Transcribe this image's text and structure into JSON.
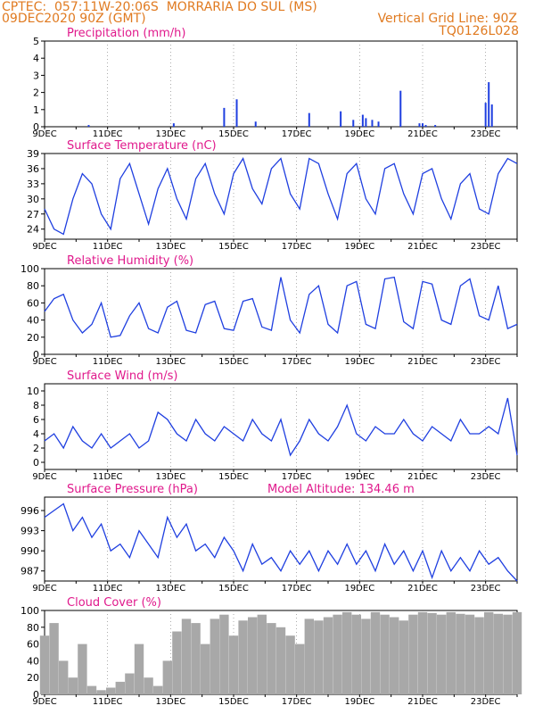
{
  "header": {
    "line1_left": "CPTEC:  057:11W-20:06S  MORRARIA DO SUL (MS)",
    "line2_left": "09DEC2020 90Z (GMT)",
    "line2_right": "Vertical Grid Line: 90Z",
    "line3_right": "TQ0126L028"
  },
  "x_tick_labels": [
    "9DEC",
    "11DEC",
    "13DEC",
    "15DEC",
    "17DEC",
    "19DEC",
    "21DEC",
    "23DEC"
  ],
  "colors": {
    "header": "#e07a20",
    "title": "#e0198c",
    "series": "#1f3fe0",
    "cloud": "#a8a8a8"
  },
  "chart_data": [
    {
      "id": "precip",
      "type": "bar",
      "title": "Precipitation (mm/h)",
      "ylim": [
        0,
        5
      ],
      "yticks": [
        0,
        1,
        2,
        3,
        4,
        5
      ],
      "xlim": [
        0,
        15
      ],
      "x_days": [
        1.4,
        4.1,
        5.7,
        6.1,
        6.7,
        8.4,
        9.4,
        9.8,
        10.1,
        10.2,
        10.4,
        10.6,
        11.3,
        11.9,
        12.0,
        12.1,
        12.4,
        14.0,
        14.1,
        14.2
      ],
      "values": [
        0.1,
        0.2,
        1.1,
        1.6,
        0.3,
        0.8,
        0.9,
        0.4,
        0.7,
        0.5,
        0.4,
        0.3,
        2.1,
        0.2,
        0.2,
        0.1,
        0.1,
        1.4,
        2.6,
        1.3
      ]
    },
    {
      "id": "temp",
      "type": "line",
      "title": "Surface Temperature (nC)",
      "ylim": [
        22,
        39
      ],
      "yticks": [
        24,
        27,
        30,
        33,
        36,
        39
      ],
      "x_days": [
        0,
        0.3,
        0.6,
        0.9,
        1.2,
        1.5,
        1.8,
        2.1,
        2.4,
        2.7,
        3.0,
        3.3,
        3.6,
        3.9,
        4.2,
        4.5,
        4.8,
        5.1,
        5.4,
        5.7,
        6.0,
        6.3,
        6.6,
        6.9,
        7.2,
        7.5,
        7.8,
        8.1,
        8.4,
        8.7,
        9.0,
        9.3,
        9.6,
        9.9,
        10.2,
        10.5,
        10.8,
        11.1,
        11.4,
        11.7,
        12.0,
        12.3,
        12.6,
        12.9,
        13.2,
        13.5,
        13.8,
        14.1,
        14.4,
        14.7,
        15.0
      ],
      "values": [
        28,
        24,
        23,
        30,
        35,
        33,
        27,
        24,
        34,
        37,
        31,
        25,
        32,
        36,
        30,
        26,
        34,
        37,
        31,
        27,
        35,
        38,
        32,
        29,
        36,
        38,
        31,
        28,
        38,
        37,
        31,
        26,
        35,
        37,
        30,
        27,
        36,
        37,
        31,
        27,
        35,
        36,
        30,
        26,
        33,
        35,
        28,
        27,
        35,
        38,
        37
      ]
    },
    {
      "id": "rh",
      "type": "line",
      "title": "Relative Humidity (%)",
      "ylim": [
        0,
        100
      ],
      "yticks": [
        0,
        20,
        40,
        60,
        80,
        100
      ],
      "x_days": [
        0,
        0.3,
        0.6,
        0.9,
        1.2,
        1.5,
        1.8,
        2.1,
        2.4,
        2.7,
        3.0,
        3.3,
        3.6,
        3.9,
        4.2,
        4.5,
        4.8,
        5.1,
        5.4,
        5.7,
        6.0,
        6.3,
        6.6,
        6.9,
        7.2,
        7.5,
        7.8,
        8.1,
        8.4,
        8.7,
        9.0,
        9.3,
        9.6,
        9.9,
        10.2,
        10.5,
        10.8,
        11.1,
        11.4,
        11.7,
        12.0,
        12.3,
        12.6,
        12.9,
        13.2,
        13.5,
        13.8,
        14.1,
        14.4,
        14.7,
        15.0
      ],
      "values": [
        50,
        65,
        70,
        40,
        25,
        35,
        60,
        20,
        22,
        45,
        60,
        30,
        25,
        55,
        62,
        28,
        25,
        58,
        62,
        30,
        28,
        62,
        65,
        32,
        28,
        90,
        40,
        25,
        70,
        80,
        35,
        25,
        80,
        85,
        35,
        30,
        88,
        90,
        38,
        30,
        85,
        82,
        40,
        35,
        80,
        88,
        45,
        40,
        80,
        30,
        35
      ]
    },
    {
      "id": "wind",
      "type": "line",
      "title": "Surface Wind (m/s)",
      "ylim": [
        -1,
        11
      ],
      "yticks": [
        0,
        2,
        4,
        6,
        8,
        10
      ],
      "x_days": [
        0,
        0.3,
        0.6,
        0.9,
        1.2,
        1.5,
        1.8,
        2.1,
        2.4,
        2.7,
        3.0,
        3.3,
        3.6,
        3.9,
        4.2,
        4.5,
        4.8,
        5.1,
        5.4,
        5.7,
        6.0,
        6.3,
        6.6,
        6.9,
        7.2,
        7.5,
        7.8,
        8.1,
        8.4,
        8.7,
        9.0,
        9.3,
        9.6,
        9.9,
        10.2,
        10.5,
        10.8,
        11.1,
        11.4,
        11.7,
        12.0,
        12.3,
        12.6,
        12.9,
        13.2,
        13.5,
        13.8,
        14.1,
        14.4,
        14.7,
        15.0
      ],
      "values": [
        3,
        4,
        2,
        5,
        3,
        2,
        4,
        2,
        3,
        4,
        2,
        3,
        7,
        6,
        4,
        3,
        6,
        4,
        3,
        5,
        4,
        3,
        6,
        4,
        3,
        6,
        1,
        3,
        6,
        4,
        3,
        5,
        8,
        4,
        3,
        5,
        4,
        4,
        6,
        4,
        3,
        5,
        4,
        3,
        6,
        4,
        4,
        5,
        4,
        9,
        1
      ]
    },
    {
      "id": "pressure",
      "type": "line",
      "title": "Surface Pressure (hPa)",
      "subtitle": "Model Altitude: 134.46 m",
      "ylim": [
        985.5,
        998
      ],
      "yticks": [
        987,
        990,
        993,
        996
      ],
      "x_days": [
        0,
        0.3,
        0.6,
        0.9,
        1.2,
        1.5,
        1.8,
        2.1,
        2.4,
        2.7,
        3.0,
        3.3,
        3.6,
        3.9,
        4.2,
        4.5,
        4.8,
        5.1,
        5.4,
        5.7,
        6.0,
        6.3,
        6.6,
        6.9,
        7.2,
        7.5,
        7.8,
        8.1,
        8.4,
        8.7,
        9.0,
        9.3,
        9.6,
        9.9,
        10.2,
        10.5,
        10.8,
        11.1,
        11.4,
        11.7,
        12.0,
        12.3,
        12.6,
        12.9,
        13.2,
        13.5,
        13.8,
        14.1,
        14.4,
        14.7,
        15.0
      ],
      "values": [
        995,
        996,
        997,
        993,
        995,
        992,
        994,
        990,
        991,
        989,
        993,
        991,
        989,
        995,
        992,
        994,
        990,
        991,
        989,
        992,
        990,
        987,
        991,
        988,
        989,
        987,
        990,
        988,
        990,
        987,
        990,
        988,
        991,
        988,
        990,
        987,
        991,
        988,
        990,
        987,
        990,
        986,
        990,
        987,
        989,
        987,
        990,
        988,
        989,
        987,
        985.5
      ]
    },
    {
      "id": "cloud",
      "type": "bar",
      "title": "Cloud Cover (%)",
      "ylim": [
        0,
        100
      ],
      "yticks": [
        0,
        20,
        40,
        60,
        80,
        100
      ],
      "x_days": [
        0,
        0.3,
        0.6,
        0.9,
        1.2,
        1.5,
        1.8,
        2.1,
        2.4,
        2.7,
        3.0,
        3.3,
        3.6,
        3.9,
        4.2,
        4.5,
        4.8,
        5.1,
        5.4,
        5.7,
        6.0,
        6.3,
        6.6,
        6.9,
        7.2,
        7.5,
        7.8,
        8.1,
        8.4,
        8.7,
        9.0,
        9.3,
        9.6,
        9.9,
        10.2,
        10.5,
        10.8,
        11.1,
        11.4,
        11.7,
        12.0,
        12.3,
        12.6,
        12.9,
        13.2,
        13.5,
        13.8,
        14.1,
        14.4,
        14.7,
        15.0
      ],
      "values": [
        70,
        85,
        40,
        20,
        60,
        10,
        5,
        8,
        15,
        25,
        60,
        20,
        10,
        40,
        75,
        90,
        85,
        60,
        90,
        95,
        70,
        88,
        92,
        95,
        85,
        80,
        70,
        60,
        90,
        88,
        92,
        95,
        98,
        95,
        90,
        98,
        95,
        92,
        88,
        95,
        98,
        97,
        95,
        98,
        96,
        95,
        92,
        98,
        96,
        95,
        98
      ]
    }
  ]
}
